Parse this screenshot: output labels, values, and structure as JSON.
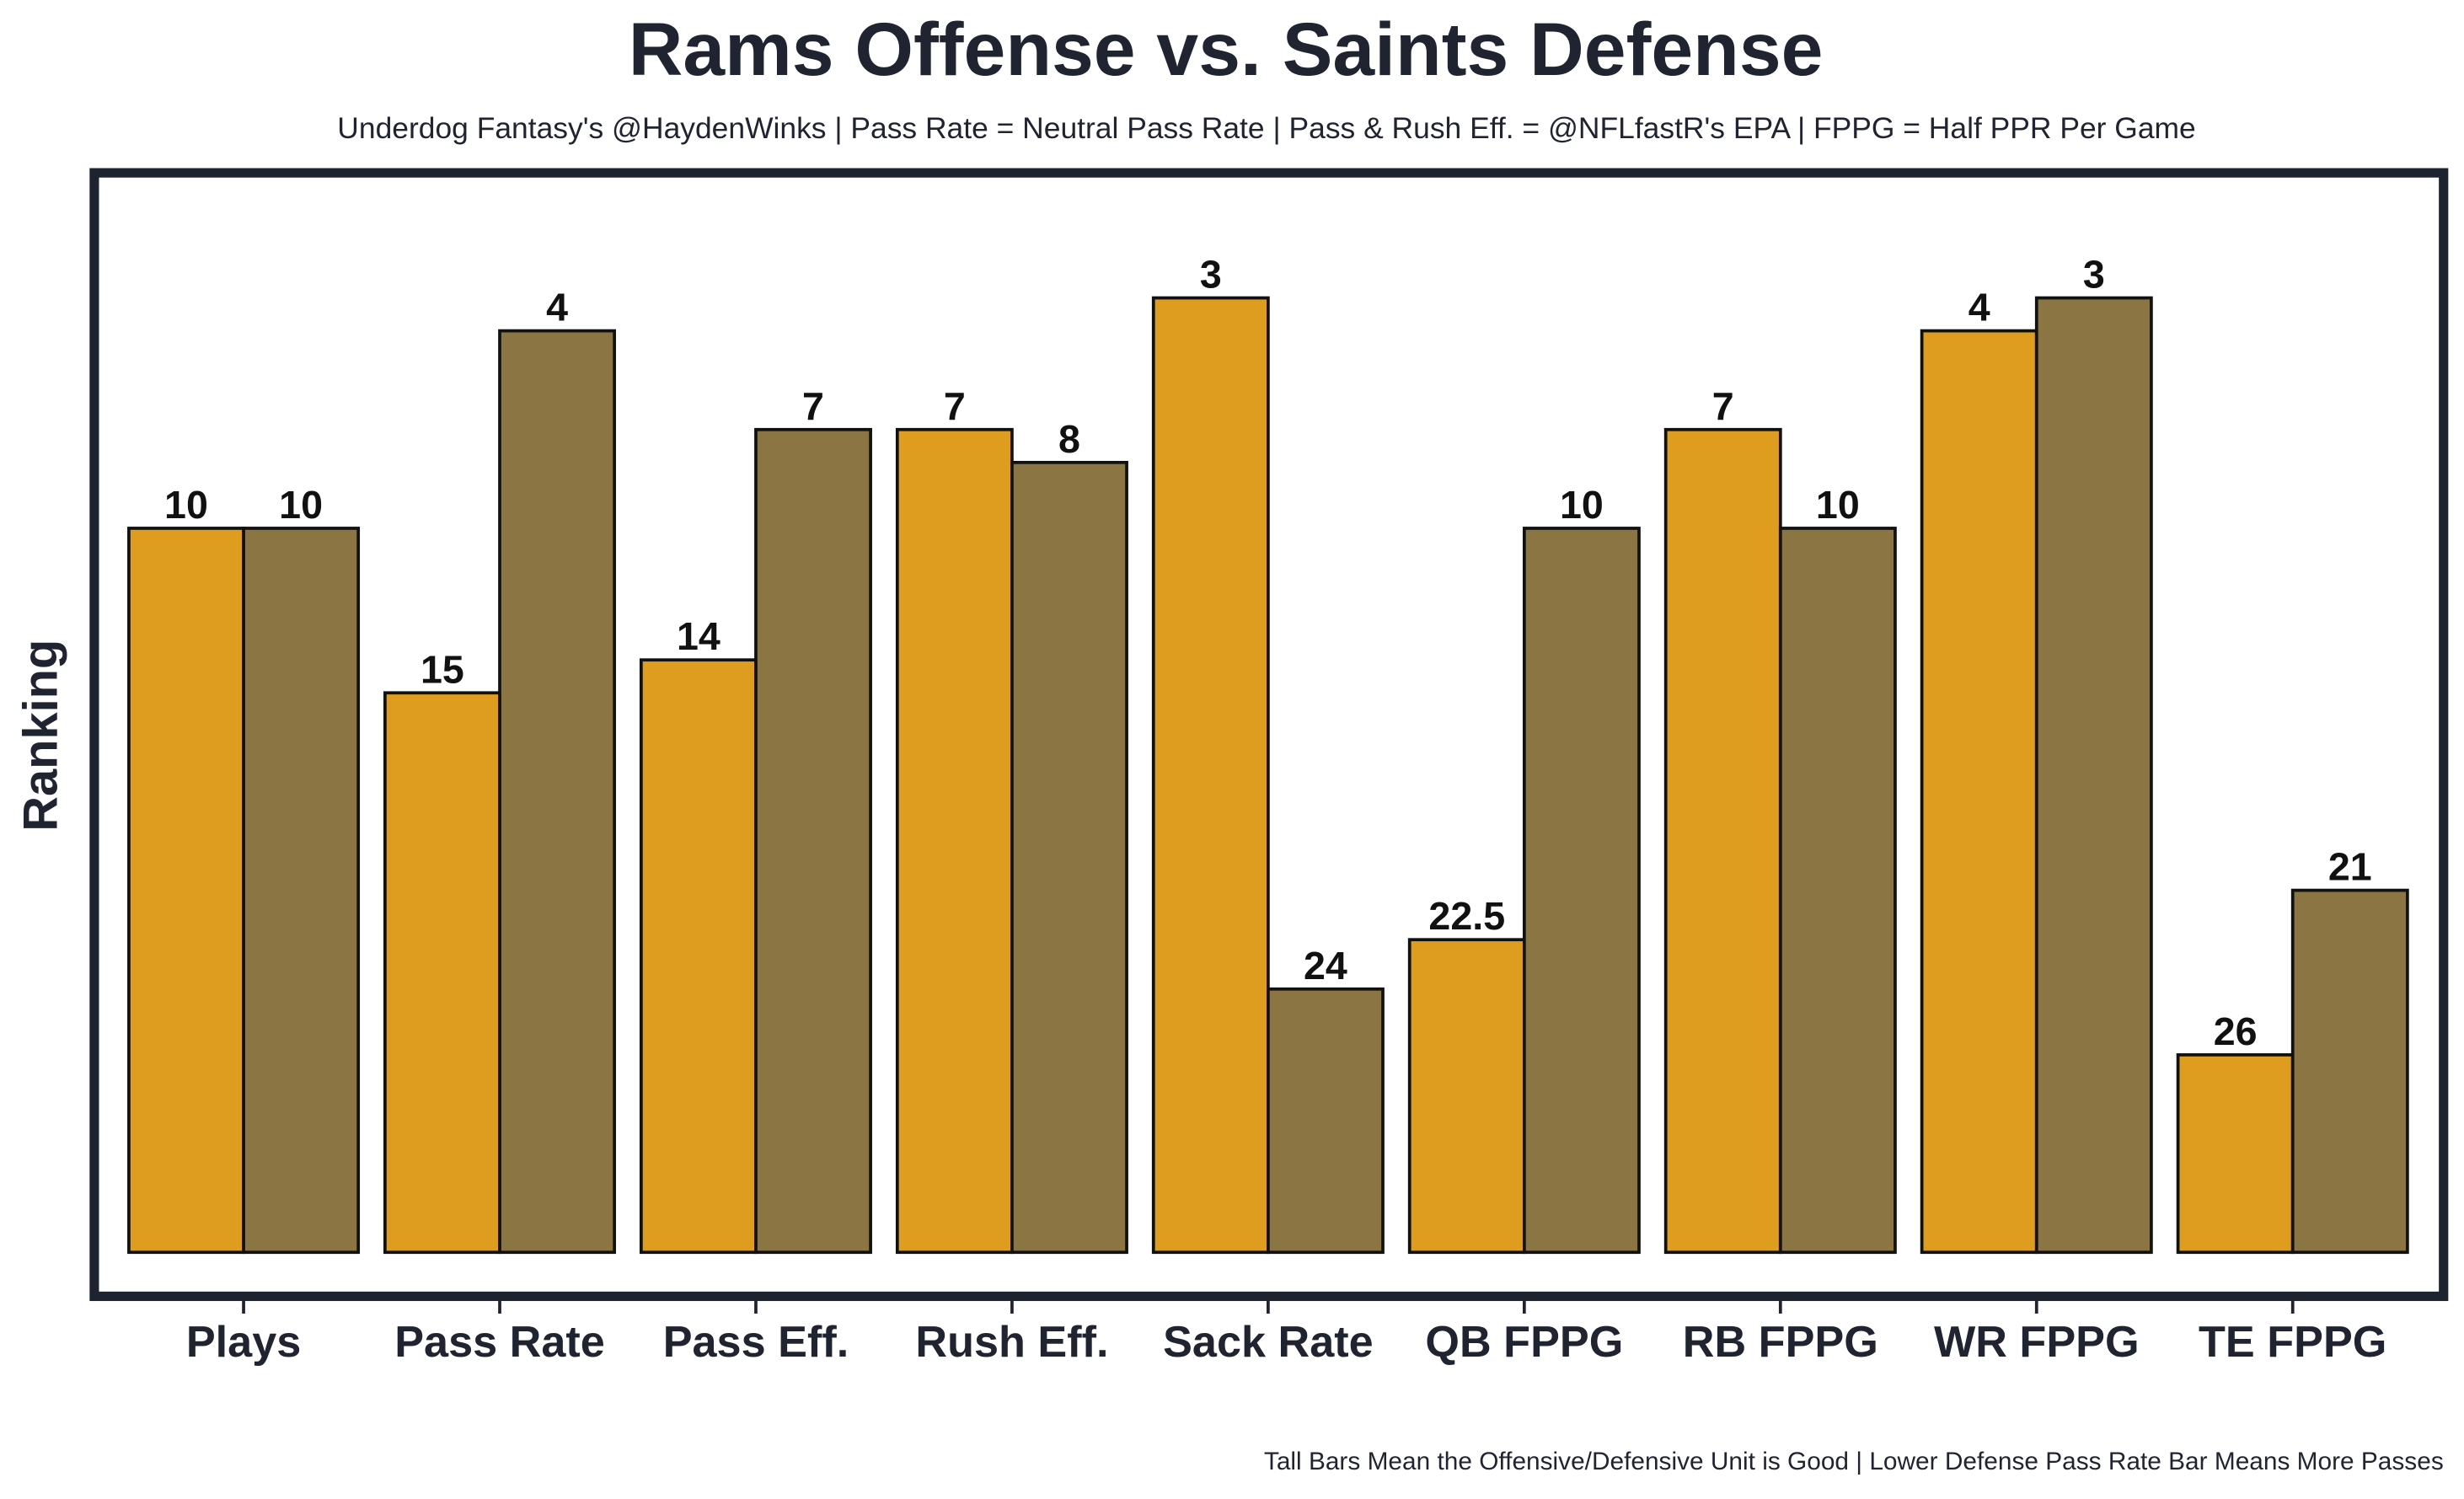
{
  "chart_data": {
    "type": "bar",
    "title": "Rams Offense vs. Saints Defense",
    "subtitle": "Underdog Fantasy's @HaydenWinks | Pass Rate = Neutral Pass Rate | Pass & Rush Eff. = @NFLfastR's EPA | FPPG = Half PPR Per Game",
    "y_label": "Ranking",
    "footnote": "Tall Bars Mean the Offensive/Defensive Unit is Good | Lower Defense Pass Rate Bar Means More Passes",
    "categories": [
      "Plays",
      "Pass Rate",
      "Pass Eff.",
      "Rush Eff.",
      "Sack Rate",
      "QB FPPG",
      "RB FPPG",
      "WR FPPG",
      "TE FPPG"
    ],
    "series": [
      {
        "color": "#de9d1f",
        "values": [
          10,
          15,
          14,
          7,
          3,
          22.5,
          7,
          4,
          26
        ]
      },
      {
        "color": "#8b7543",
        "values": [
          10,
          4,
          7,
          8,
          24,
          10,
          10,
          3,
          21
        ]
      }
    ],
    "ylim": [
      32,
      -0.8
    ]
  }
}
